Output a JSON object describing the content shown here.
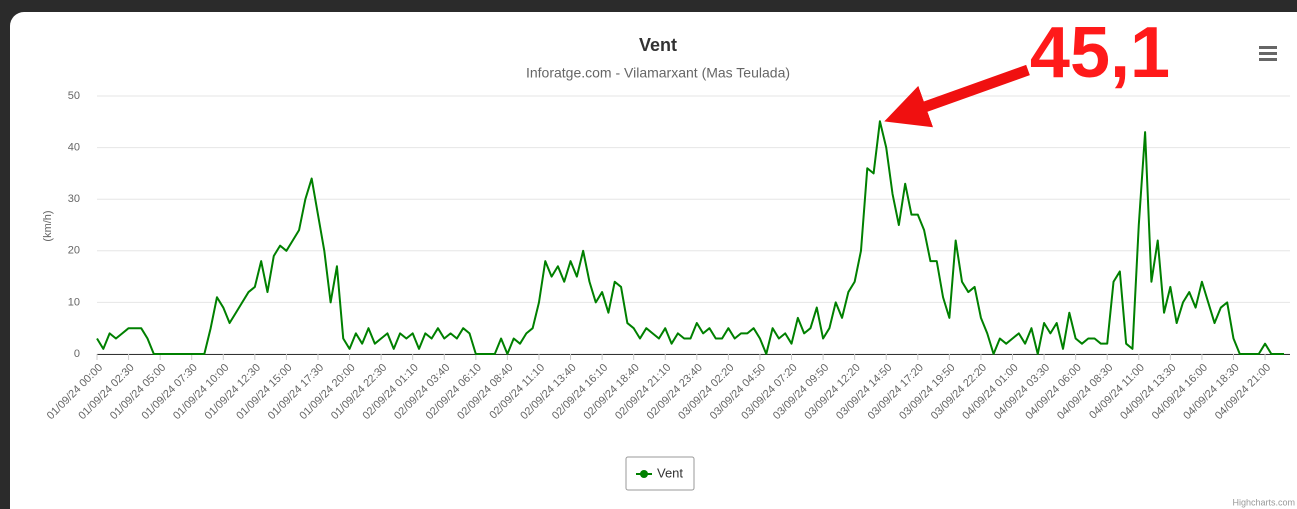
{
  "chart_data": {
    "type": "line",
    "title": "Vent",
    "subtitle": "Inforatge.com - Vilamarxant (Mas Teulada)",
    "y_label": "(km/h)",
    "annotation": "45,1",
    "credits": "Highcharts.com",
    "categories": [
      "01/09/24 00:00",
      null,
      null,
      null,
      null,
      "01/09/24 02:30",
      null,
      null,
      null,
      null,
      "01/09/24 05:00",
      null,
      null,
      null,
      null,
      "01/09/24 07:30",
      null,
      null,
      null,
      null,
      "01/09/24 10:00",
      null,
      null,
      null,
      null,
      "01/09/24 12:30",
      null,
      null,
      null,
      null,
      "01/09/24 15:00",
      null,
      null,
      null,
      null,
      "01/09/24 17:30",
      null,
      null,
      null,
      null,
      "01/09/24 20:00",
      null,
      null,
      null,
      null,
      "01/09/24 22:30",
      null,
      null,
      null,
      null,
      "02/09/24 01:10",
      null,
      null,
      null,
      null,
      "02/09/24 03:40",
      null,
      null,
      null,
      null,
      "02/09/24 06:10",
      null,
      null,
      null,
      null,
      "02/09/24 08:40",
      null,
      null,
      null,
      null,
      "02/09/24 11:10",
      null,
      null,
      null,
      null,
      "02/09/24 13:40",
      null,
      null,
      null,
      null,
      "02/09/24 16:10",
      null,
      null,
      null,
      null,
      "02/09/24 18:40",
      null,
      null,
      null,
      null,
      "02/09/24 21:10",
      null,
      null,
      null,
      null,
      "02/09/24 23:40",
      null,
      null,
      null,
      null,
      "03/09/24 02:20",
      null,
      null,
      null,
      null,
      "03/09/24 04:50",
      null,
      null,
      null,
      null,
      "03/09/24 07:20",
      null,
      null,
      null,
      null,
      "03/09/24 09:50",
      null,
      null,
      null,
      null,
      "03/09/24 12:20",
      null,
      null,
      null,
      null,
      "03/09/24 14:50",
      null,
      null,
      null,
      null,
      "03/09/24 17:20",
      null,
      null,
      null,
      null,
      "03/09/24 19:50",
      null,
      null,
      null,
      null,
      "03/09/24 22:20",
      null,
      null,
      null,
      null,
      "04/09/24 01:00",
      null,
      null,
      null,
      null,
      "04/09/24 03:30",
      null,
      null,
      null,
      null,
      "04/09/24 06:00",
      null,
      null,
      null,
      null,
      "04/09/24 08:30",
      null,
      null,
      null,
      null,
      "04/09/24 11:00",
      null,
      null,
      null,
      null,
      "04/09/24 13:30",
      null,
      null,
      null,
      null,
      "04/09/24 16:00",
      null,
      null,
      null,
      null,
      "04/09/24 18:30",
      null,
      null,
      null,
      null,
      "04/09/24 21:00",
      null,
      null,
      null
    ],
    "series": [
      {
        "name": "Vent",
        "color": "#008000",
        "values": [
          3,
          1,
          4,
          3,
          4,
          5,
          5,
          5,
          3,
          0,
          0,
          0,
          0,
          0,
          0,
          0,
          0,
          0,
          5,
          11,
          9,
          6,
          8,
          10,
          12,
          13,
          18,
          12,
          19,
          21,
          20,
          22,
          24,
          30,
          34,
          27,
          20,
          10,
          17,
          3,
          1,
          4,
          2,
          5,
          2,
          3,
          4,
          1,
          4,
          3,
          4,
          1,
          4,
          3,
          5,
          3,
          4,
          3,
          5,
          4,
          0,
          0,
          0,
          0,
          3,
          0,
          3,
          2,
          4,
          5,
          10,
          18,
          15,
          17,
          14,
          18,
          15,
          20,
          14,
          10,
          12,
          8,
          14,
          13,
          6,
          5,
          3,
          5,
          4,
          3,
          5,
          2,
          4,
          3,
          3,
          6,
          4,
          5,
          3,
          3,
          5,
          3,
          4,
          4,
          5,
          3,
          0,
          5,
          3,
          4,
          2,
          7,
          4,
          5,
          9,
          3,
          5,
          10,
          7,
          12,
          14,
          20,
          36,
          35,
          45.1,
          40,
          31,
          25,
          33,
          27,
          27,
          24,
          18,
          18,
          11,
          7,
          22,
          14,
          12,
          13,
          7,
          4,
          0,
          3,
          2,
          3,
          4,
          2,
          5,
          0,
          6,
          4,
          6,
          1,
          8,
          3,
          2,
          3,
          3,
          2,
          2,
          14,
          16,
          2,
          1,
          25,
          43,
          14,
          22,
          8,
          13,
          6,
          10,
          12,
          9,
          14,
          10,
          6,
          9,
          10,
          3,
          0,
          0,
          0,
          0,
          2,
          0,
          0,
          0
        ]
      }
    ],
    "ylim": [
      0,
      50
    ],
    "yticks": [
      0,
      10,
      20,
      30,
      40,
      50
    ],
    "grid": true,
    "legend": "bottom"
  }
}
